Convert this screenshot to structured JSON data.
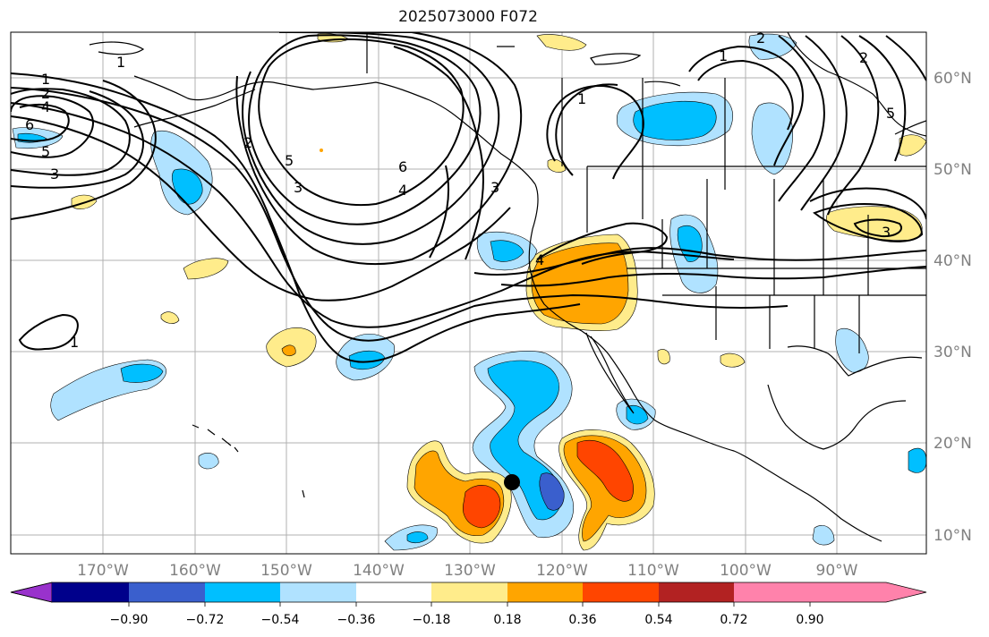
{
  "title": "2025073000 F072",
  "map": {
    "longitude_labels": [
      "170°W",
      "160°W",
      "150°W",
      "140°W",
      "130°W",
      "120°W",
      "110°W",
      "100°W",
      "90°W"
    ],
    "latitude_labels": [
      "60°N",
      "50°N",
      "40°N",
      "30°N",
      "20°N",
      "10°N"
    ],
    "contour_labels": [
      "1",
      "2",
      "4",
      "6",
      "5",
      "3",
      "1",
      "2",
      "5",
      "3",
      "6",
      "4",
      "3",
      "4",
      "1",
      "1",
      "2",
      "2",
      "5",
      "3",
      "1"
    ],
    "marker": "storm-center-dot"
  },
  "colorbar": {
    "tick_labels": [
      "−0.90",
      "−0.72",
      "−0.54",
      "−0.36",
      "−0.18",
      "0.18",
      "0.36",
      "0.54",
      "0.72",
      "0.90"
    ],
    "colors": [
      "#9932cc",
      "#00008b",
      "#3a5fcd",
      "#00bfff",
      "#b0e2ff",
      "#ffffff",
      "#ffec8b",
      "#ffa500",
      "#ff4500",
      "#b22222",
      "#ff82ab"
    ]
  }
}
